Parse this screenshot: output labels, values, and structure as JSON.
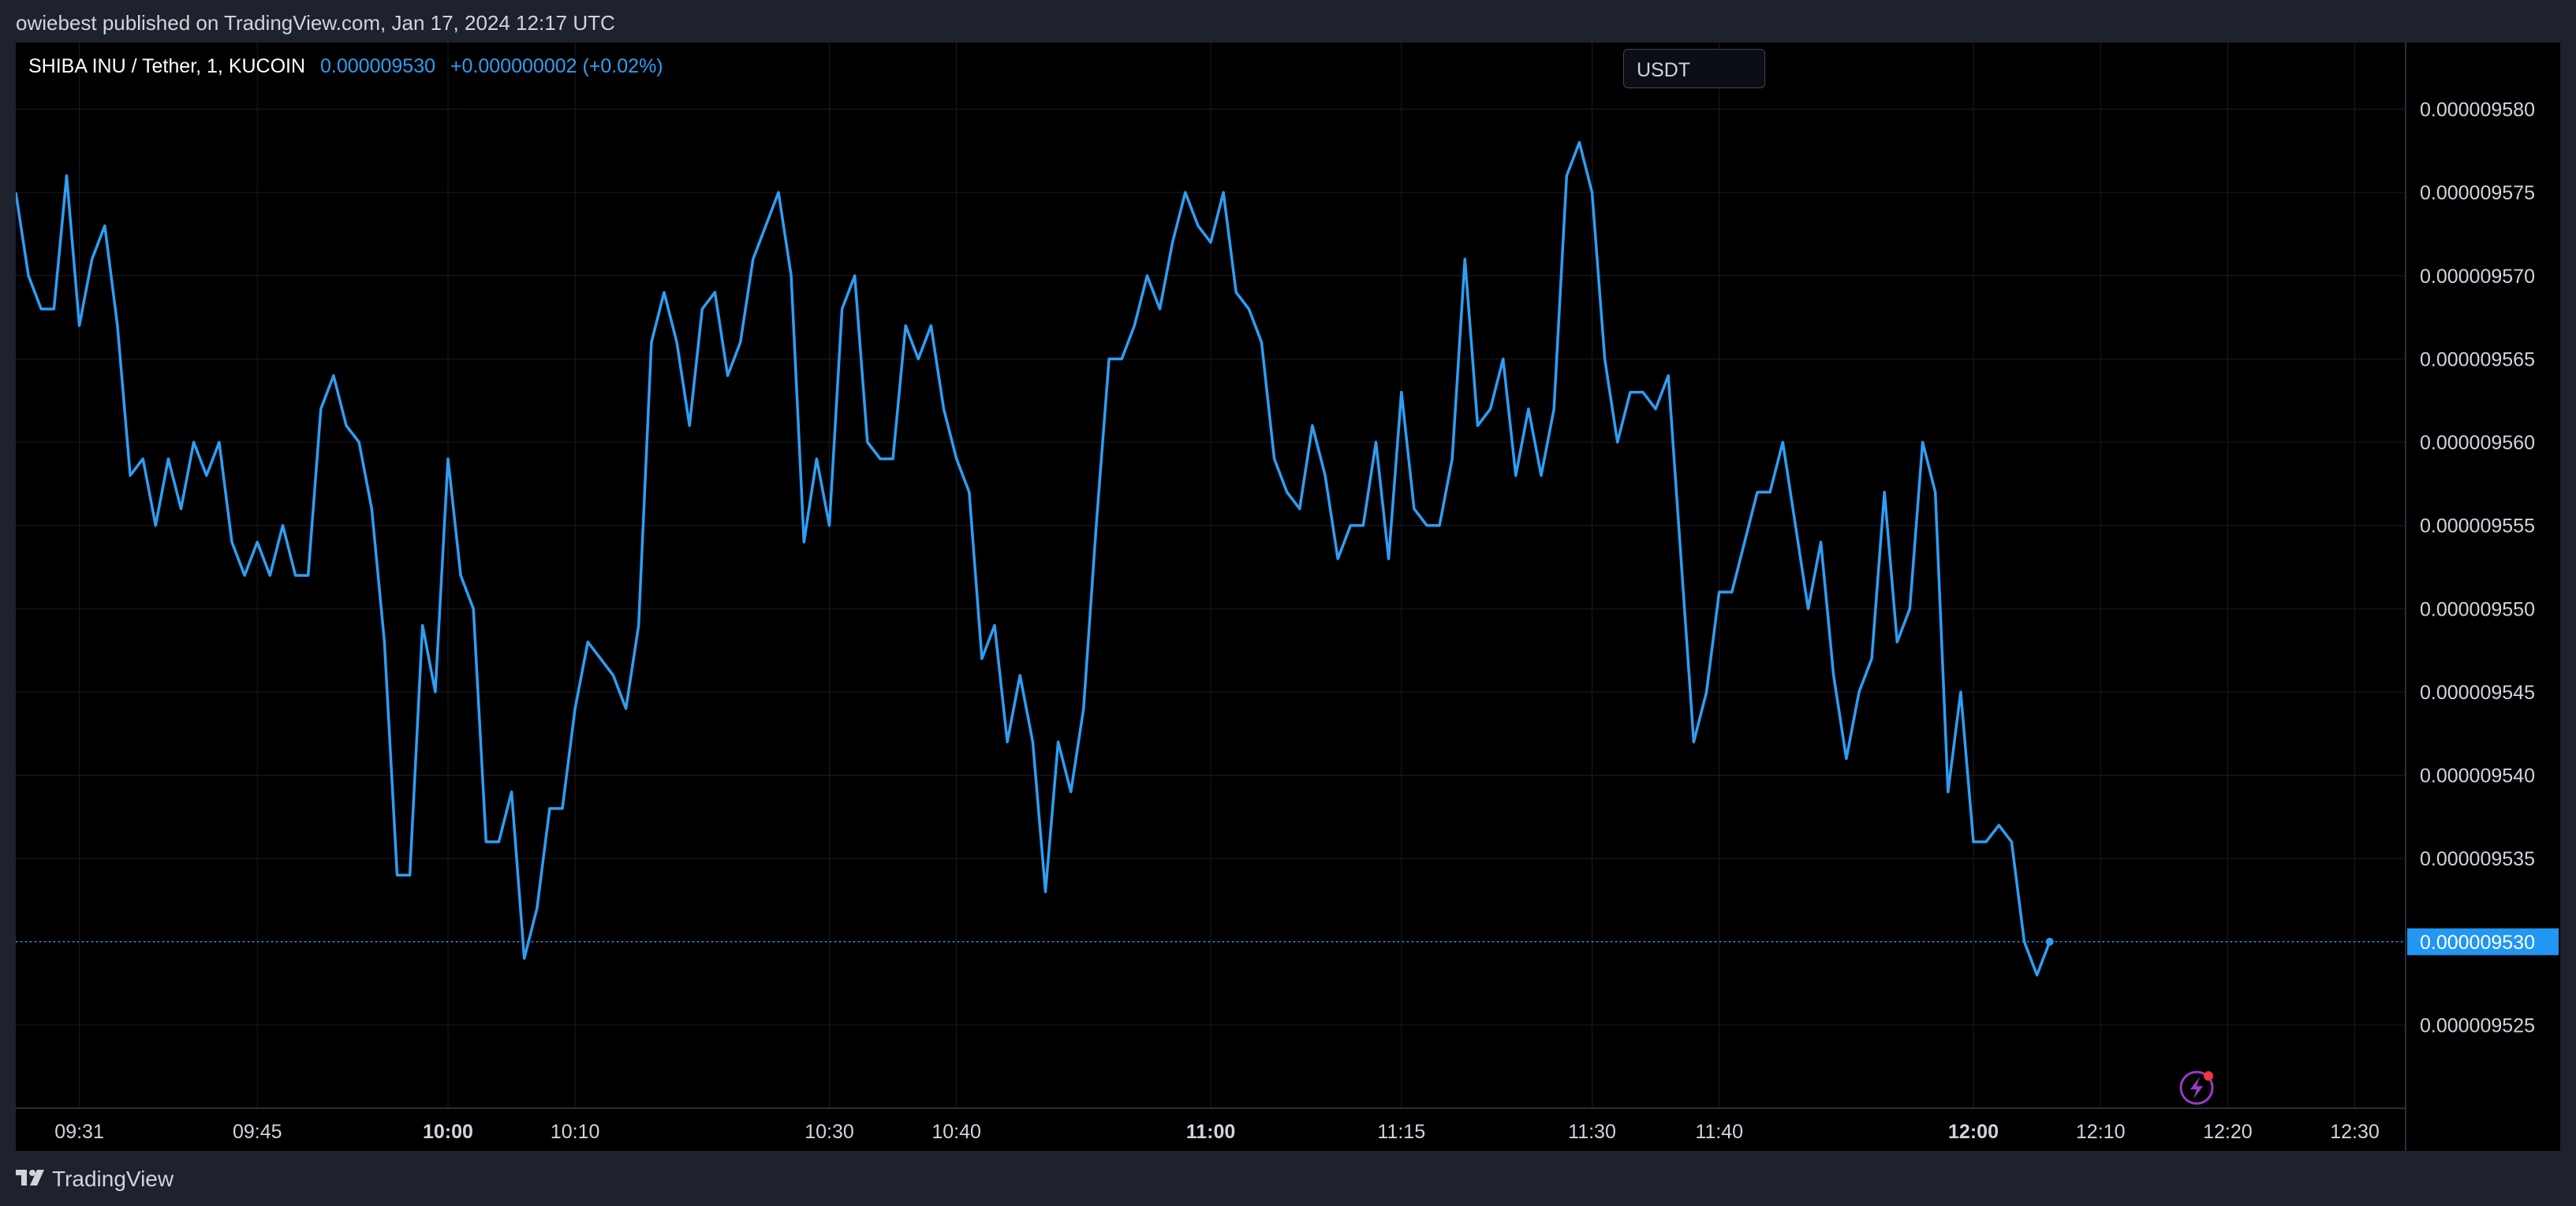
{
  "header": {
    "published_text": "owiebest published on TradingView.com, Jan 17, 2024 12:17 UTC"
  },
  "legend": {
    "symbol": "SHIBA INU / Tether, 1, KUCOIN",
    "price": "0.000009530",
    "change": "+0.000000002 (+0.02%)"
  },
  "currency_button": {
    "label": "USDT"
  },
  "footer": {
    "brand": "TradingView"
  },
  "colors": {
    "line": "#2e9ef4",
    "background": "#000000",
    "grid": "#1a1d24",
    "axis_text": "#d1d4dc",
    "price_label_bg": "#2196f3",
    "alert_icon": "#9c3ac4",
    "alert_dot": "#f23645"
  },
  "icons": {
    "alert": "lightning-icon",
    "logo": "tradingview-logo-icon"
  },
  "chart_data": {
    "type": "line",
    "title": "SHIBA INU / Tether, 1, KUCOIN",
    "ylim": [
      9.52e-06,
      9.584e-06
    ],
    "x_range": [
      "09:26",
      "12:34"
    ],
    "grid": true,
    "current_price": 9.53e-06,
    "current_price_label": "0.000009530",
    "y_ticks": [
      {
        "value": 9.525e-06,
        "label": "0.000009525"
      },
      {
        "value": 9.53e-06,
        "label": "0.000009530"
      },
      {
        "value": 9.535e-06,
        "label": "0.000009535"
      },
      {
        "value": 9.54e-06,
        "label": "0.000009540"
      },
      {
        "value": 9.545e-06,
        "label": "0.000009545"
      },
      {
        "value": 9.55e-06,
        "label": "0.000009550"
      },
      {
        "value": 9.555e-06,
        "label": "0.000009555"
      },
      {
        "value": 9.56e-06,
        "label": "0.000009560"
      },
      {
        "value": 9.565e-06,
        "label": "0.000009565"
      },
      {
        "value": 9.57e-06,
        "label": "0.000009570"
      },
      {
        "value": 9.575e-06,
        "label": "0.000009575"
      },
      {
        "value": 9.58e-06,
        "label": "0.000009580"
      }
    ],
    "x_ticks": [
      {
        "time": "09:31",
        "label": "09:31",
        "major": false
      },
      {
        "time": "09:45",
        "label": "09:45",
        "major": false
      },
      {
        "time": "10:00",
        "label": "10:00",
        "major": true
      },
      {
        "time": "10:10",
        "label": "10:10",
        "major": false
      },
      {
        "time": "10:30",
        "label": "10:30",
        "major": false
      },
      {
        "time": "10:40",
        "label": "10:40",
        "major": false
      },
      {
        "time": "11:00",
        "label": "11:00",
        "major": true
      },
      {
        "time": "11:15",
        "label": "11:15",
        "major": false
      },
      {
        "time": "11:30",
        "label": "11:30",
        "major": false
      },
      {
        "time": "11:40",
        "label": "11:40",
        "major": false
      },
      {
        "time": "12:00",
        "label": "12:00",
        "major": true
      },
      {
        "time": "12:10",
        "label": "12:10",
        "major": false
      },
      {
        "time": "12:20",
        "label": "12:20",
        "major": false
      },
      {
        "time": "12:30",
        "label": "12:30",
        "major": false
      }
    ],
    "series": [
      {
        "values": [
          [
            "09:26",
            9.575e-06
          ],
          [
            "09:27",
            9.57e-06
          ],
          [
            "09:28",
            9.568e-06
          ],
          [
            "09:29",
            9.568e-06
          ],
          [
            "09:30",
            9.576e-06
          ],
          [
            "09:31",
            9.567e-06
          ],
          [
            "09:32",
            9.571e-06
          ],
          [
            "09:33",
            9.573e-06
          ],
          [
            "09:34",
            9.567e-06
          ],
          [
            "09:35",
            9.558e-06
          ],
          [
            "09:36",
            9.559e-06
          ],
          [
            "09:37",
            9.555e-06
          ],
          [
            "09:38",
            9.559e-06
          ],
          [
            "09:39",
            9.556e-06
          ],
          [
            "09:40",
            9.56e-06
          ],
          [
            "09:41",
            9.558e-06
          ],
          [
            "09:42",
            9.56e-06
          ],
          [
            "09:43",
            9.554e-06
          ],
          [
            "09:44",
            9.552e-06
          ],
          [
            "09:45",
            9.554e-06
          ],
          [
            "09:46",
            9.552e-06
          ],
          [
            "09:47",
            9.555e-06
          ],
          [
            "09:48",
            9.552e-06
          ],
          [
            "09:49",
            9.552e-06
          ],
          [
            "09:50",
            9.562e-06
          ],
          [
            "09:51",
            9.564e-06
          ],
          [
            "09:52",
            9.561e-06
          ],
          [
            "09:53",
            9.56e-06
          ],
          [
            "09:54",
            9.556e-06
          ],
          [
            "09:55",
            9.548e-06
          ],
          [
            "09:56",
            9.534e-06
          ],
          [
            "09:57",
            9.534e-06
          ],
          [
            "09:58",
            9.549e-06
          ],
          [
            "09:59",
            9.545e-06
          ],
          [
            "10:00",
            9.559e-06
          ],
          [
            "10:01",
            9.552e-06
          ],
          [
            "10:02",
            9.55e-06
          ],
          [
            "10:03",
            9.536e-06
          ],
          [
            "10:04",
            9.536e-06
          ],
          [
            "10:05",
            9.539e-06
          ],
          [
            "10:06",
            9.529e-06
          ],
          [
            "10:07",
            9.532e-06
          ],
          [
            "10:08",
            9.538e-06
          ],
          [
            "10:09",
            9.538e-06
          ],
          [
            "10:10",
            9.544e-06
          ],
          [
            "10:11",
            9.548e-06
          ],
          [
            "10:12",
            9.547e-06
          ],
          [
            "10:13",
            9.546e-06
          ],
          [
            "10:14",
            9.544e-06
          ],
          [
            "10:15",
            9.549e-06
          ],
          [
            "10:16",
            9.566e-06
          ],
          [
            "10:17",
            9.569e-06
          ],
          [
            "10:18",
            9.566e-06
          ],
          [
            "10:19",
            9.561e-06
          ],
          [
            "10:20",
            9.568e-06
          ],
          [
            "10:21",
            9.569e-06
          ],
          [
            "10:22",
            9.564e-06
          ],
          [
            "10:23",
            9.566e-06
          ],
          [
            "10:24",
            9.571e-06
          ],
          [
            "10:25",
            9.573e-06
          ],
          [
            "10:26",
            9.575e-06
          ],
          [
            "10:27",
            9.57e-06
          ],
          [
            "10:28",
            9.554e-06
          ],
          [
            "10:29",
            9.559e-06
          ],
          [
            "10:30",
            9.555e-06
          ],
          [
            "10:31",
            9.568e-06
          ],
          [
            "10:32",
            9.57e-06
          ],
          [
            "10:33",
            9.56e-06
          ],
          [
            "10:34",
            9.559e-06
          ],
          [
            "10:35",
            9.559e-06
          ],
          [
            "10:36",
            9.567e-06
          ],
          [
            "10:37",
            9.565e-06
          ],
          [
            "10:38",
            9.567e-06
          ],
          [
            "10:39",
            9.562e-06
          ],
          [
            "10:40",
            9.559e-06
          ],
          [
            "10:41",
            9.557e-06
          ],
          [
            "10:42",
            9.547e-06
          ],
          [
            "10:43",
            9.549e-06
          ],
          [
            "10:44",
            9.542e-06
          ],
          [
            "10:45",
            9.546e-06
          ],
          [
            "10:46",
            9.542e-06
          ],
          [
            "10:47",
            9.533e-06
          ],
          [
            "10:48",
            9.542e-06
          ],
          [
            "10:49",
            9.539e-06
          ],
          [
            "10:50",
            9.544e-06
          ],
          [
            "10:51",
            9.555e-06
          ],
          [
            "10:52",
            9.565e-06
          ],
          [
            "10:53",
            9.565e-06
          ],
          [
            "10:54",
            9.567e-06
          ],
          [
            "10:55",
            9.57e-06
          ],
          [
            "10:56",
            9.568e-06
          ],
          [
            "10:57",
            9.572e-06
          ],
          [
            "10:58",
            9.575e-06
          ],
          [
            "10:59",
            9.573e-06
          ],
          [
            "11:00",
            9.572e-06
          ],
          [
            "11:01",
            9.575e-06
          ],
          [
            "11:02",
            9.569e-06
          ],
          [
            "11:03",
            9.568e-06
          ],
          [
            "11:04",
            9.566e-06
          ],
          [
            "11:05",
            9.559e-06
          ],
          [
            "11:06",
            9.557e-06
          ],
          [
            "11:07",
            9.556e-06
          ],
          [
            "11:08",
            9.561e-06
          ],
          [
            "11:09",
            9.558e-06
          ],
          [
            "11:10",
            9.553e-06
          ],
          [
            "11:11",
            9.555e-06
          ],
          [
            "11:12",
            9.555e-06
          ],
          [
            "11:13",
            9.56e-06
          ],
          [
            "11:14",
            9.553e-06
          ],
          [
            "11:15",
            9.563e-06
          ],
          [
            "11:16",
            9.556e-06
          ],
          [
            "11:17",
            9.555e-06
          ],
          [
            "11:18",
            9.555e-06
          ],
          [
            "11:19",
            9.559e-06
          ],
          [
            "11:20",
            9.571e-06
          ],
          [
            "11:21",
            9.561e-06
          ],
          [
            "11:22",
            9.562e-06
          ],
          [
            "11:23",
            9.565e-06
          ],
          [
            "11:24",
            9.558e-06
          ],
          [
            "11:25",
            9.562e-06
          ],
          [
            "11:26",
            9.558e-06
          ],
          [
            "11:27",
            9.562e-06
          ],
          [
            "11:28",
            9.576e-06
          ],
          [
            "11:29",
            9.578e-06
          ],
          [
            "11:30",
            9.575e-06
          ],
          [
            "11:31",
            9.565e-06
          ],
          [
            "11:32",
            9.56e-06
          ],
          [
            "11:33",
            9.563e-06
          ],
          [
            "11:34",
            9.563e-06
          ],
          [
            "11:35",
            9.562e-06
          ],
          [
            "11:36",
            9.564e-06
          ],
          [
            "11:37",
            9.553e-06
          ],
          [
            "11:38",
            9.542e-06
          ],
          [
            "11:39",
            9.545e-06
          ],
          [
            "11:40",
            9.551e-06
          ],
          [
            "11:41",
            9.551e-06
          ],
          [
            "11:42",
            9.554e-06
          ],
          [
            "11:43",
            9.557e-06
          ],
          [
            "11:44",
            9.557e-06
          ],
          [
            "11:45",
            9.56e-06
          ],
          [
            "11:46",
            9.555e-06
          ],
          [
            "11:47",
            9.55e-06
          ],
          [
            "11:48",
            9.554e-06
          ],
          [
            "11:49",
            9.546e-06
          ],
          [
            "11:50",
            9.541e-06
          ],
          [
            "11:51",
            9.545e-06
          ],
          [
            "11:52",
            9.547e-06
          ],
          [
            "11:53",
            9.557e-06
          ],
          [
            "11:54",
            9.548e-06
          ],
          [
            "11:55",
            9.55e-06
          ],
          [
            "11:56",
            9.56e-06
          ],
          [
            "11:57",
            9.557e-06
          ],
          [
            "11:58",
            9.539e-06
          ],
          [
            "11:59",
            9.545e-06
          ],
          [
            "12:00",
            9.536e-06
          ],
          [
            "12:01",
            9.536e-06
          ],
          [
            "12:02",
            9.537e-06
          ],
          [
            "12:03",
            9.536e-06
          ],
          [
            "12:04",
            9.53e-06
          ],
          [
            "12:05",
            9.528e-06
          ],
          [
            "12:06",
            9.53e-06
          ]
        ]
      }
    ]
  }
}
